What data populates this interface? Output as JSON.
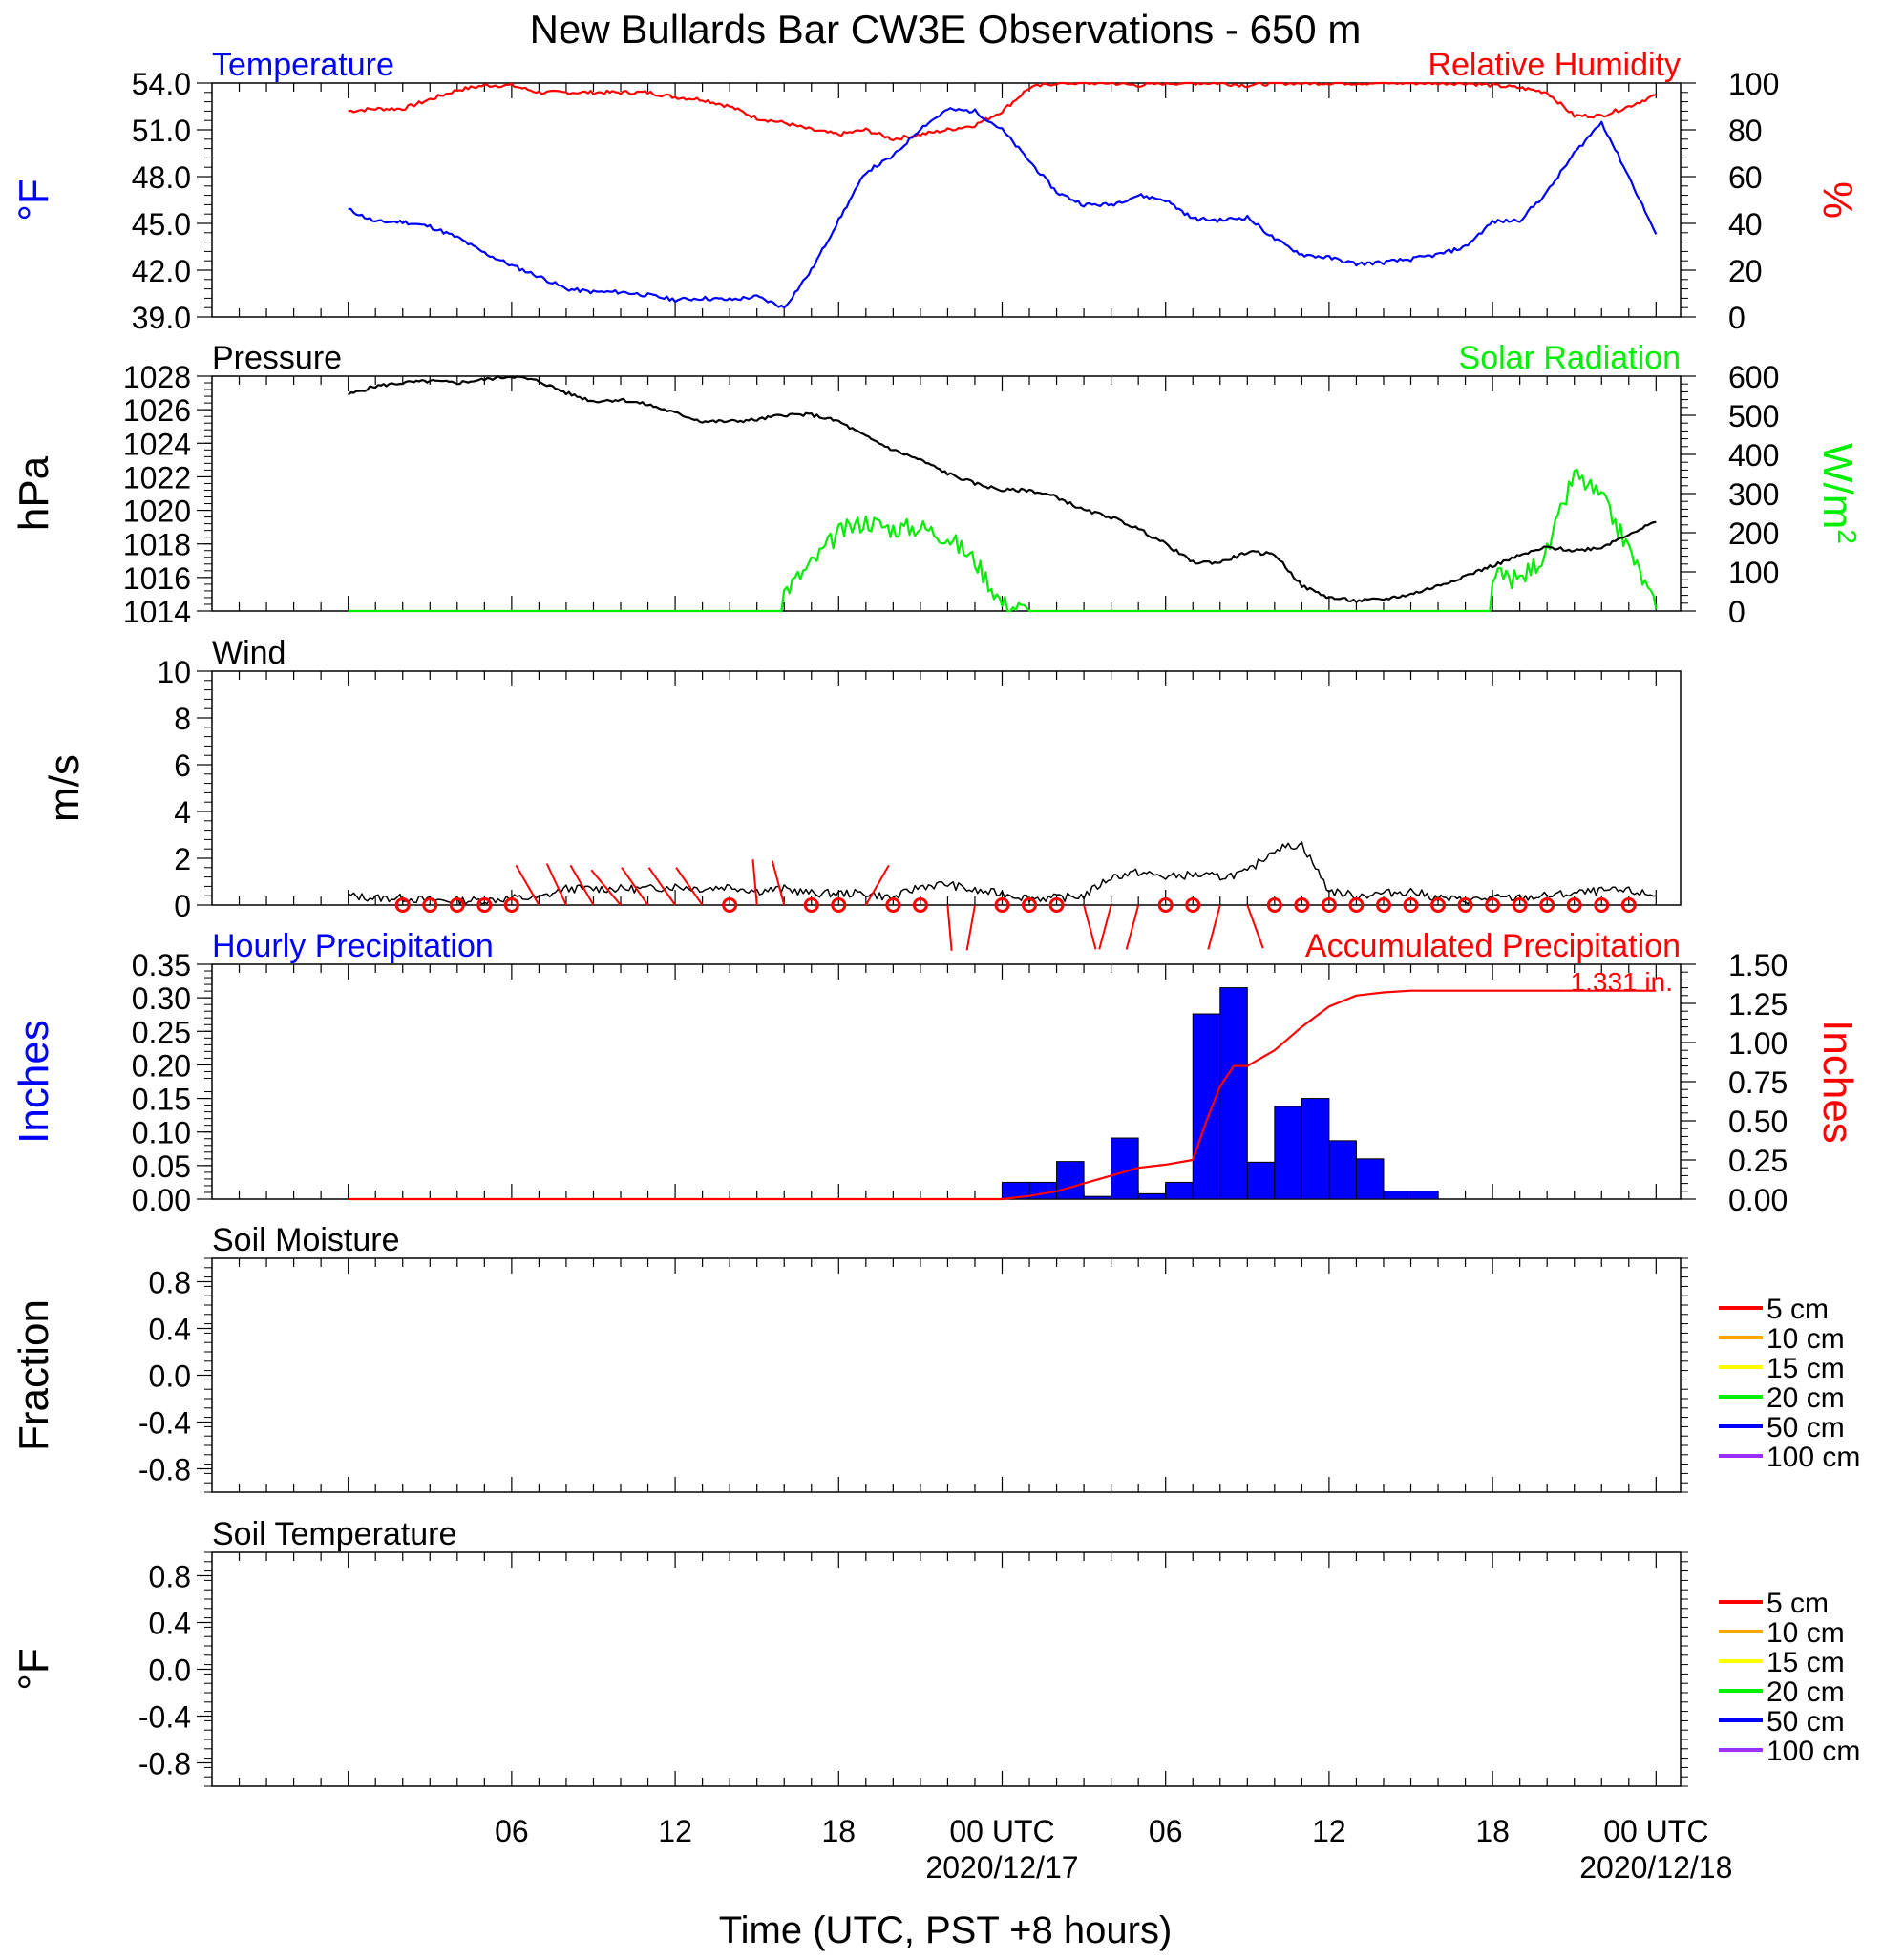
{
  "title": "New Bullards Bar CW3E Observations - 650 m",
  "xaxis": {
    "label": "Time (UTC, PST +8 hours)",
    "ticks": [
      {
        "h": 6,
        "label": "06"
      },
      {
        "h": 12,
        "label": "12"
      },
      {
        "h": 18,
        "label": "18"
      },
      {
        "h": 24,
        "label": "00 UTC",
        "date": "2020/12/17"
      },
      {
        "h": 30,
        "label": "06"
      },
      {
        "h": 36,
        "label": "12"
      },
      {
        "h": 42,
        "label": "18"
      },
      {
        "h": 48,
        "label": "00 UTC",
        "date": "2020/12/18"
      }
    ]
  },
  "chart_data": [
    {
      "type": "line",
      "panel": "temperature-humidity",
      "left_title": "Temperature",
      "right_title": "Relative Humidity",
      "ylabel": "°F",
      "y2label": "%",
      "ylim": [
        39,
        54
      ],
      "y2lim": [
        0,
        100
      ],
      "yticks": [
        "39.0",
        "42.0",
        "45.0",
        "48.0",
        "51.0",
        "54.0"
      ],
      "y2ticks": [
        "0",
        "20",
        "40",
        "60",
        "80",
        "100"
      ],
      "x_hours": [
        0,
        1,
        2,
        3,
        4,
        5,
        6,
        7,
        8,
        9,
        10,
        11,
        12,
        13,
        14,
        15,
        16,
        17,
        18,
        19,
        20,
        21,
        22,
        23,
        24,
        25,
        26,
        27,
        28,
        29,
        30,
        31,
        32,
        33,
        34,
        35,
        36,
        37,
        38,
        39,
        40,
        41,
        42,
        43,
        44,
        45,
        46,
        47,
        48
      ],
      "series": [
        {
          "name": "Temperature",
          "color": "#0000ff",
          "axis": "left",
          "values": [
            45.9,
            45.1,
            45.1,
            44.8,
            44.1,
            43.1,
            42.3,
            41.6,
            40.8,
            40.6,
            40.6,
            40.4,
            40.1,
            40.2,
            40.1,
            40.3,
            39.6,
            42.0,
            45.2,
            48.3,
            49.3,
            51.1,
            52.3,
            52.2,
            51.0,
            49.0,
            47.0,
            46.2,
            46.2,
            46.8,
            46.5,
            45.3,
            45.2,
            45.4,
            44.0,
            43.0,
            42.8,
            42.4,
            42.5,
            42.7,
            43.0,
            43.5,
            45.1,
            45.2,
            47.0,
            49.5,
            51.5,
            48.0,
            44.3
          ]
        },
        {
          "name": "Relative Humidity",
          "color": "#ff0000",
          "axis": "right",
          "values": [
            88,
            89,
            89,
            93,
            97,
            99,
            99,
            96,
            96,
            96,
            96,
            96,
            94,
            93,
            90,
            85,
            83,
            80,
            78,
            80,
            76,
            78,
            80,
            82,
            88,
            98,
            100,
            100,
            100,
            99,
            100,
            100,
            100,
            99,
            100,
            100,
            100,
            100,
            100,
            100,
            100,
            100,
            99,
            98,
            96,
            86,
            86,
            90,
            95
          ]
        }
      ]
    },
    {
      "type": "line",
      "panel": "pressure-solar",
      "left_title": "Pressure",
      "right_title": "Solar Radiation",
      "ylabel": "hPa",
      "y2label": "W/m",
      "y2label_sup": "2",
      "ylim": [
        1014,
        1028
      ],
      "y2lim": [
        0,
        600
      ],
      "yticks": [
        "1014",
        "1016",
        "1018",
        "1020",
        "1022",
        "1024",
        "1026",
        "1028"
      ],
      "y2ticks": [
        "0",
        "100",
        "200",
        "300",
        "400",
        "500",
        "600"
      ],
      "x_hours": [
        0,
        1,
        2,
        3,
        4,
        5,
        6,
        7,
        8,
        9,
        10,
        11,
        12,
        13,
        14,
        15,
        16,
        17,
        18,
        19,
        20,
        21,
        22,
        23,
        24,
        25,
        26,
        27,
        28,
        29,
        30,
        31,
        32,
        33,
        34,
        35,
        36,
        37,
        38,
        39,
        40,
        41,
        42,
        43,
        44,
        45,
        46,
        47,
        48
      ],
      "series": [
        {
          "name": "Pressure",
          "color": "#000000",
          "axis": "left",
          "values": [
            1026.9,
            1027.4,
            1027.6,
            1027.7,
            1027.6,
            1027.8,
            1028.0,
            1027.7,
            1027.0,
            1026.5,
            1026.6,
            1026.3,
            1025.8,
            1025.3,
            1025.3,
            1025.4,
            1025.7,
            1025.7,
            1025.3,
            1024.4,
            1023.6,
            1023.0,
            1022.2,
            1021.6,
            1021.2,
            1021.2,
            1020.8,
            1020.0,
            1019.6,
            1018.9,
            1018.0,
            1016.9,
            1016.9,
            1017.5,
            1017.4,
            1015.5,
            1014.8,
            1014.6,
            1014.7,
            1015.0,
            1015.5,
            1016.1,
            1016.7,
            1017.3,
            1017.8,
            1017.6,
            1017.8,
            1018.6,
            1019.3
          ]
        },
        {
          "name": "Solar Radiation",
          "color": "#00ee00",
          "axis": "right",
          "values": [
            0,
            0,
            0,
            0,
            0,
            0,
            0,
            0,
            0,
            0,
            0,
            0,
            0,
            0,
            0,
            0,
            50,
            120,
            200,
            230,
            210,
            215,
            190,
            130,
            20,
            0,
            0,
            0,
            0,
            0,
            0,
            0,
            0,
            0,
            0,
            0,
            0,
            0,
            0,
            0,
            0,
            0,
            90,
            80,
            150,
            350,
            290,
            160,
            5
          ]
        }
      ]
    },
    {
      "type": "line",
      "panel": "wind",
      "left_title": "Wind",
      "ylabel": "m/s",
      "ylim": [
        0,
        10
      ],
      "yticks": [
        "0",
        "2",
        "4",
        "6",
        "8",
        "10"
      ],
      "x_hours": [
        0,
        1,
        2,
        3,
        4,
        5,
        6,
        7,
        8,
        9,
        10,
        11,
        12,
        13,
        14,
        15,
        16,
        17,
        18,
        19,
        20,
        21,
        22,
        23,
        24,
        25,
        26,
        27,
        28,
        29,
        30,
        31,
        32,
        33,
        34,
        35,
        36,
        37,
        38,
        39,
        40,
        41,
        42,
        43,
        44,
        45,
        46,
        47,
        48
      ],
      "series": [
        {
          "name": "Wind speed",
          "color": "#000000",
          "values": [
            0.4,
            0.3,
            0.3,
            0.2,
            0.2,
            0.2,
            0.3,
            0.3,
            0.7,
            0.7,
            0.7,
            0.7,
            0.8,
            0.7,
            0.8,
            0.6,
            0.7,
            0.5,
            0.5,
            0.5,
            0.3,
            0.8,
            0.9,
            0.6,
            0.5,
            0.3,
            0.3,
            0.4,
            1.2,
            1.4,
            1.2,
            1.3,
            1.2,
            1.4,
            2.4,
            2.6,
            0.6,
            0.4,
            0.5,
            0.6,
            0.3,
            0.2,
            0.3,
            0.3,
            0.4,
            0.5,
            0.6,
            0.6,
            0.4
          ]
        }
      ],
      "barbs": [
        {
          "h": 2,
          "speed": 0,
          "dir": 0
        },
        {
          "h": 3,
          "speed": 0,
          "dir": 0
        },
        {
          "h": 4,
          "speed": 0,
          "dir": 0
        },
        {
          "h": 5,
          "speed": 0,
          "dir": 0
        },
        {
          "h": 6,
          "speed": 0,
          "dir": 0
        },
        {
          "h": 7,
          "speed": 1,
          "dir": 330
        },
        {
          "h": 8,
          "speed": 1,
          "dir": 335
        },
        {
          "h": 9,
          "speed": 1,
          "dir": 330
        },
        {
          "h": 10,
          "speed": 1,
          "dir": 320
        },
        {
          "h": 11,
          "speed": 1,
          "dir": 325
        },
        {
          "h": 12,
          "speed": 1,
          "dir": 325
        },
        {
          "h": 13,
          "speed": 1,
          "dir": 325
        },
        {
          "h": 14,
          "speed": 0,
          "dir": 0
        },
        {
          "h": 15,
          "speed": 1,
          "dir": 355
        },
        {
          "h": 16,
          "speed": 1,
          "dir": 345
        },
        {
          "h": 17,
          "speed": 0,
          "dir": 0
        },
        {
          "h": 18,
          "speed": 0,
          "dir": 0
        },
        {
          "h": 19,
          "speed": 1,
          "dir": 30
        },
        {
          "h": 20,
          "speed": 0,
          "dir": 0
        },
        {
          "h": 21,
          "speed": 0,
          "dir": 0
        },
        {
          "h": 22,
          "speed": 1,
          "dir": 175
        },
        {
          "h": 23,
          "speed": 1,
          "dir": 190
        },
        {
          "h": 24,
          "speed": 0,
          "dir": 0
        },
        {
          "h": 25,
          "speed": 0,
          "dir": 0
        },
        {
          "h": 26,
          "speed": 0,
          "dir": 0
        },
        {
          "h": 27,
          "speed": 1,
          "dir": 165
        },
        {
          "h": 28,
          "speed": 1,
          "dir": 195
        },
        {
          "h": 29,
          "speed": 1,
          "dir": 195
        },
        {
          "h": 30,
          "speed": 0,
          "dir": 0
        },
        {
          "h": 31,
          "speed": 0,
          "dir": 0
        },
        {
          "h": 32,
          "speed": 1,
          "dir": 195
        },
        {
          "h": 33,
          "speed": 1,
          "dir": 160
        },
        {
          "h": 34,
          "speed": 0,
          "dir": 0
        },
        {
          "h": 35,
          "speed": 0,
          "dir": 0
        },
        {
          "h": 36,
          "speed": 0,
          "dir": 0
        },
        {
          "h": 37,
          "speed": 0,
          "dir": 0
        },
        {
          "h": 38,
          "speed": 0,
          "dir": 0
        },
        {
          "h": 39,
          "speed": 0,
          "dir": 0
        },
        {
          "h": 40,
          "speed": 0,
          "dir": 0
        },
        {
          "h": 41,
          "speed": 0,
          "dir": 0
        },
        {
          "h": 42,
          "speed": 0,
          "dir": 0
        },
        {
          "h": 43,
          "speed": 0,
          "dir": 0
        },
        {
          "h": 44,
          "speed": 0,
          "dir": 0
        },
        {
          "h": 45,
          "speed": 0,
          "dir": 0
        },
        {
          "h": 46,
          "speed": 0,
          "dir": 0
        },
        {
          "h": 47,
          "speed": 0,
          "dir": 0
        }
      ]
    },
    {
      "type": "bar",
      "panel": "precipitation",
      "left_title": "Hourly Precipitation",
      "right_title": "Accumulated Precipitation",
      "ylabel": "Inches",
      "y2label": "Inches",
      "ylim": [
        0,
        0.35
      ],
      "y2lim": [
        0,
        1.5
      ],
      "yticks": [
        "0.00",
        "0.05",
        "0.10",
        "0.15",
        "0.20",
        "0.25",
        "0.30",
        "0.35"
      ],
      "y2ticks": [
        "0.00",
        "0.25",
        "0.50",
        "0.75",
        "1.00",
        "1.25",
        "1.50"
      ],
      "total_label": "1.331 in.",
      "hourly": {
        "name": "Hourly Precipitation",
        "color": "#0000ff",
        "x_hours": [
          24,
          25,
          26,
          27,
          28,
          29,
          30,
          31,
          32,
          33,
          34,
          35,
          36,
          37,
          38,
          39,
          40
        ],
        "values": [
          0.025,
          0.025,
          0.056,
          0.004,
          0.091,
          0.008,
          0.025,
          0.276,
          0.315,
          0.055,
          0.138,
          0.15,
          0.087,
          0.06,
          0.012,
          0.012,
          0.0
        ]
      },
      "accumulated": {
        "name": "Accumulated Precipitation",
        "color": "#ff0000",
        "x_hours": [
          0,
          24,
          25,
          26,
          27,
          28,
          29,
          30,
          31,
          31.5,
          32,
          32.5,
          33,
          34,
          35,
          36,
          37,
          38,
          39,
          48
        ],
        "values": [
          0,
          0,
          0.02,
          0.05,
          0.1,
          0.15,
          0.2,
          0.22,
          0.25,
          0.5,
          0.72,
          0.85,
          0.85,
          0.95,
          1.1,
          1.23,
          1.3,
          1.32,
          1.331,
          1.331
        ]
      }
    },
    {
      "type": "line",
      "panel": "soil-moisture",
      "left_title": "Soil Moisture",
      "ylabel": "Fraction",
      "ylim": [
        -1.0,
        1.0
      ],
      "yticks": [
        "-0.8",
        "-0.4",
        "0.0",
        "0.4",
        "0.8"
      ],
      "legend": [
        {
          "name": "5 cm",
          "color": "#ff0000"
        },
        {
          "name": "10 cm",
          "color": "#ffa500"
        },
        {
          "name": "15 cm",
          "color": "#ffff00"
        },
        {
          "name": "20 cm",
          "color": "#00ee00"
        },
        {
          "name": "50 cm",
          "color": "#0000ff"
        },
        {
          "name": "100 cm",
          "color": "#9b30ff"
        }
      ]
    },
    {
      "type": "line",
      "panel": "soil-temperature",
      "left_title": "Soil Temperature",
      "ylabel": "°F",
      "ylim": [
        -1.0,
        1.0
      ],
      "yticks": [
        "-0.8",
        "-0.4",
        "0.0",
        "0.4",
        "0.8"
      ],
      "legend": [
        {
          "name": "5 cm",
          "color": "#ff0000"
        },
        {
          "name": "10 cm",
          "color": "#ffa500"
        },
        {
          "name": "15 cm",
          "color": "#ffff00"
        },
        {
          "name": "20 cm",
          "color": "#00ee00"
        },
        {
          "name": "50 cm",
          "color": "#0000ff"
        },
        {
          "name": "100 cm",
          "color": "#9b30ff"
        }
      ]
    }
  ]
}
